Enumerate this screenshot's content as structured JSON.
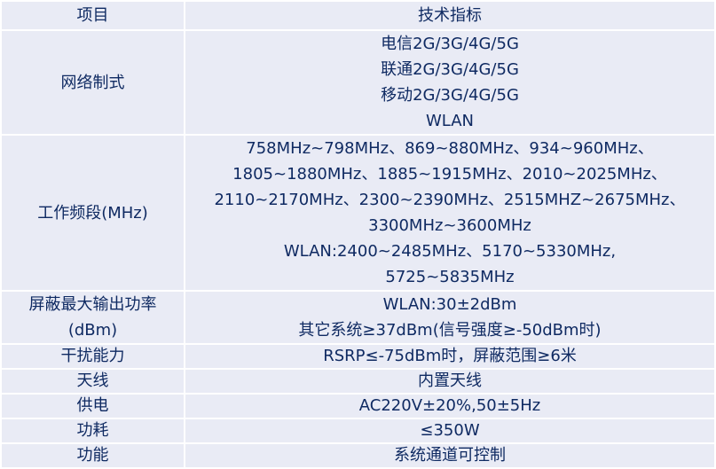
{
  "table": {
    "header": {
      "item": "项目",
      "spec": "技术指标"
    },
    "rows": [
      {
        "item": [
          "网络制式"
        ],
        "spec": [
          "电信2G/3G/4G/5G",
          "联通2G/3G/4G/5G",
          "移动2G/3G/4G/5G",
          "WLAN"
        ]
      },
      {
        "item": [
          "工作频段(MHz)"
        ],
        "spec": [
          "758MHz~798MHz、869~880MHz、934~960MHz、",
          "1805~1880MHz、1885~1915MHz、2010~2025MHz、",
          "2110~2170MHz、2300~2390MHz、2515MHZ~2675MHz、",
          "3300MHz~3600MHz",
          "WLAN:2400~2485MHz、5170~5330MHz,",
          "5725~5835MHz"
        ]
      },
      {
        "item": [
          "屏蔽最大输出功率",
          "(dBm)"
        ],
        "spec": [
          "WLAN:30±2dBm",
          "其它系统≥37dBm(信号强度≥-50dBm时)"
        ]
      },
      {
        "item": [
          "干扰能力"
        ],
        "spec": [
          "RSRP≤-75dBm时，屏蔽范围≥6米"
        ]
      },
      {
        "item": [
          "天线"
        ],
        "spec": [
          "内置天线"
        ]
      },
      {
        "item": [
          "供电"
        ],
        "spec": [
          "AC220V±20%,50±5Hz"
        ]
      },
      {
        "item": [
          "功耗"
        ],
        "spec": [
          "≤350W"
        ]
      },
      {
        "item": [
          "功能"
        ],
        "spec": [
          "系统通道可控制"
        ]
      }
    ]
  }
}
